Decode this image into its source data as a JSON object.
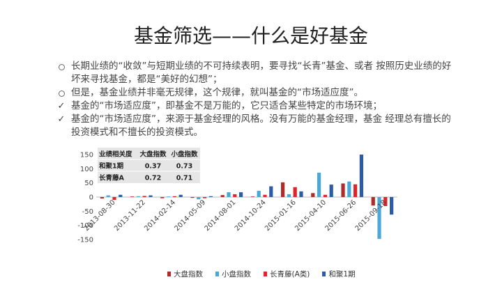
{
  "title": "基金筛选——什么是好基金",
  "bullets": [
    {
      "marker": "dot",
      "text": "长期业绩的“收敛”与短期业绩的不可持续表明，要寻找“长青”基金、或者 按照历史业绩的好坏来寻找基金，都是“美好的幻想”；"
    },
    {
      "marker": "dot",
      "text": "但是，基金业绩并非毫无规律，这个规律，就叫基金的“市场适应度”。"
    },
    {
      "marker": "check",
      "text": "基金的“市场适应度”，即基金不是万能的，它只适合某些特定的市场环境；"
    },
    {
      "marker": "check",
      "text": "基金的“市场适应度”，来源于基金经理的风格。没有万能的基金经理，基金 经理总有擅长的投资模式和不擅长的投资模式。"
    }
  ],
  "chart_data": {
    "type": "bar",
    "ylim": [
      -150,
      150
    ],
    "yticks": [
      -150,
      -100,
      -50,
      0,
      50,
      100,
      150
    ],
    "x_tick_labels": [
      "2013-08-30",
      "2013-11-22",
      "2014-02-14",
      "2014-05-09",
      "2014-08-01",
      "2014-10-24",
      "2015-01-16",
      "2015-04-10",
      "2015-06-26",
      "2015-09-18"
    ],
    "groups": 10,
    "series": [
      {
        "name": "大盘指数",
        "color": "#b22b2b",
        "values": [
          -5,
          2,
          -4,
          -3,
          7,
          2,
          52,
          14,
          48,
          -30
        ]
      },
      {
        "name": "小盘指数",
        "color": "#4aa8d8",
        "values": [
          6,
          3,
          2,
          -8,
          17,
          22,
          10,
          86,
          55,
          -148
        ]
      },
      {
        "name": "长青藤(A类)",
        "color": "#e0242b",
        "values": [
          -10,
          4,
          3,
          -4,
          10,
          8,
          35,
          8,
          45,
          -32
        ]
      },
      {
        "name": "和聚1期",
        "color": "#2b5ca5",
        "values": [
          8,
          6,
          8,
          3,
          17,
          38,
          20,
          44,
          150,
          -62
        ]
      }
    ],
    "table": {
      "headers": [
        "业绩相关度",
        "大盘指数",
        "小盘指数"
      ],
      "rows": [
        [
          "和聚1期",
          "0.37",
          "0.73"
        ],
        [
          "长青藤A",
          "0.72",
          "0.71"
        ]
      ]
    }
  },
  "colors": {
    "title": "#222222",
    "text": "#444444",
    "table_bg": "#e6e6e6"
  }
}
